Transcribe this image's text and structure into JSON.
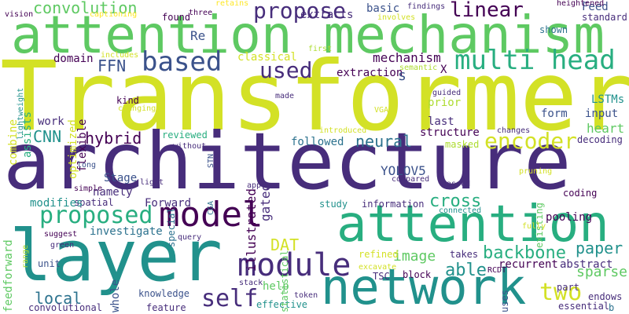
{
  "colors": {
    "background": "#ffffff",
    "palette": [
      "#440154",
      "#472d7b",
      "#3b528b",
      "#2c728e",
      "#21918c",
      "#28ae80",
      "#5ec962",
      "#addc30",
      "#d3e126",
      "#fde725"
    ]
  },
  "words": [
    {
      "text": "Transformer",
      "color": "#d3e126"
    },
    {
      "text": "architecture",
      "color": "#472d7b"
    },
    {
      "text": "attention mechanism",
      "color": "#5ec962"
    },
    {
      "text": "layer",
      "color": "#21918c"
    },
    {
      "text": "network",
      "color": "#21918c"
    },
    {
      "text": "attention",
      "color": "#28ae80"
    },
    {
      "text": "model",
      "color": "#440154"
    },
    {
      "text": "multi head",
      "color": "#28ae80"
    },
    {
      "text": "module",
      "color": "#472d7b"
    },
    {
      "text": "based",
      "color": "#3b528b"
    },
    {
      "text": "encoder",
      "color": "#d3e126"
    },
    {
      "text": "proposed",
      "color": "#28ae80"
    },
    {
      "text": "self",
      "color": "#472d7b"
    },
    {
      "text": "two",
      "color": "#d3e126"
    },
    {
      "text": "backbone",
      "color": "#28ae80"
    },
    {
      "text": "convolution",
      "color": "#5ec962"
    },
    {
      "text": "propose",
      "color": "#472d7b"
    },
    {
      "text": "used",
      "color": "#472d7b"
    },
    {
      "text": "linear",
      "color": "#440154"
    },
    {
      "text": "FFN",
      "color": "#3b528b"
    },
    {
      "text": "CNN",
      "color": "#21918c"
    },
    {
      "text": "hybrid",
      "color": "#440154"
    },
    {
      "text": "neural",
      "color": "#2c728e"
    },
    {
      "text": "cross",
      "color": "#28ae80"
    },
    {
      "text": "able",
      "color": "#21918c"
    },
    {
      "text": "paper",
      "color": "#21918c"
    },
    {
      "text": "sparse",
      "color": "#5ec962"
    },
    {
      "text": "local",
      "color": "#2c728e"
    },
    {
      "text": "image",
      "color": "#5ec962"
    },
    {
      "text": "DAT",
      "color": "#d3e126"
    },
    {
      "text": "mechanism",
      "color": "#440154"
    },
    {
      "text": "classical",
      "color": "#d3e126"
    },
    {
      "text": "YOLOV5",
      "color": "#3b528b"
    },
    {
      "text": "Forward",
      "color": "#472d7b"
    },
    {
      "text": "Feed",
      "color": "#3b528b"
    },
    {
      "text": "extracts",
      "color": "#472d7b"
    },
    {
      "text": "basic",
      "color": "#3b528b"
    },
    {
      "text": "extraction",
      "color": "#440154"
    },
    {
      "text": "s",
      "color": "#3b528b"
    },
    {
      "text": "structure",
      "color": "#440154"
    },
    {
      "text": "followed",
      "color": "#2c728e"
    },
    {
      "text": "refined",
      "color": "#d3e126"
    },
    {
      "text": "recurrent",
      "color": "#440154"
    },
    {
      "text": "abstract",
      "color": "#472d7b"
    },
    {
      "text": "pooling",
      "color": "#440154"
    },
    {
      "text": "Stage",
      "color": "#3b528b"
    },
    {
      "text": "namely",
      "color": "#472d7b"
    },
    {
      "text": "spatial",
      "color": "#472d7b"
    },
    {
      "text": "modifies",
      "color": "#21918c"
    },
    {
      "text": "investigate",
      "color": "#2c728e"
    },
    {
      "text": "study",
      "color": "#21918c"
    },
    {
      "text": "information",
      "color": "#472d7b"
    },
    {
      "text": "coding",
      "color": "#440154"
    },
    {
      "text": "decoding",
      "color": "#472d7b"
    },
    {
      "text": "input",
      "color": "#3b528b"
    },
    {
      "text": "heart",
      "color": "#5ec962"
    },
    {
      "text": "form",
      "color": "#3b528b"
    },
    {
      "text": "LSTMs",
      "color": "#21918c"
    },
    {
      "text": "standard",
      "color": "#472d7b"
    },
    {
      "text": "shown",
      "color": "#2c728e"
    },
    {
      "text": "last",
      "color": "#472d7b"
    },
    {
      "text": "prior",
      "color": "#addc30"
    },
    {
      "text": "masked",
      "color": "#addc30"
    },
    {
      "text": "reviewed",
      "color": "#28ae80"
    },
    {
      "text": "kind",
      "color": "#440154"
    },
    {
      "text": "work",
      "color": "#472d7b"
    },
    {
      "text": "domain",
      "color": "#440154"
    },
    {
      "text": "found",
      "color": "#440154"
    },
    {
      "text": "Re",
      "color": "#3b528b"
    },
    {
      "text": "X",
      "color": "#440154"
    },
    {
      "text": "help",
      "color": "#5ec962"
    },
    {
      "text": "unit",
      "color": "#3b528b"
    },
    {
      "text": "convolutional",
      "color": "#472d7b"
    },
    {
      "text": "effective",
      "color": "#21918c"
    },
    {
      "text": "knowledge",
      "color": "#3b528b"
    },
    {
      "text": "feature",
      "color": "#472d7b"
    },
    {
      "text": "block",
      "color": "#440154"
    },
    {
      "text": "TSC",
      "color": "#472d7b"
    },
    {
      "text": "takes",
      "color": "#472d7b"
    },
    {
      "text": "part",
      "color": "#472d7b"
    },
    {
      "text": "endows",
      "color": "#472d7b"
    },
    {
      "text": "essential",
      "color": "#472d7b"
    },
    {
      "text": "b",
      "color": "#2c728e"
    },
    {
      "text": "existing",
      "color": "#5ec962"
    },
    {
      "text": "special",
      "color": "#2c728e"
    },
    {
      "text": "statistical",
      "color": "#5ec962"
    },
    {
      "text": "illustrated",
      "color": "#440154"
    },
    {
      "text": "gated",
      "color": "#472d7b"
    },
    {
      "text": "optimized",
      "color": "#d3e126"
    },
    {
      "text": "flexible",
      "color": "#440154"
    },
    {
      "text": "assists",
      "color": "#28ae80"
    },
    {
      "text": "combine",
      "color": "#d3e126"
    },
    {
      "text": "feedforward",
      "color": "#5ec962"
    },
    {
      "text": "whole",
      "color": "#3b528b"
    },
    {
      "text": "uses",
      "color": "#3b528b"
    },
    {
      "text": "vision",
      "color": "#440154"
    },
    {
      "text": "captioning",
      "color": "#fde725"
    },
    {
      "text": "three",
      "color": "#440154"
    },
    {
      "text": "retains",
      "color": "#fde725"
    },
    {
      "text": "involves",
      "color": "#d3e126"
    },
    {
      "text": "findings",
      "color": "#472d7b"
    },
    {
      "text": "heightened",
      "color": "#440154"
    },
    {
      "text": "first",
      "color": "#addc30"
    },
    {
      "text": "semantic",
      "color": "#addc30"
    },
    {
      "text": "includes",
      "color": "#d3e126"
    },
    {
      "text": "lightweight",
      "color": "#21918c"
    },
    {
      "text": "made",
      "color": "#472d7b"
    },
    {
      "text": "guided",
      "color": "#472d7b"
    },
    {
      "text": "VGA",
      "color": "#d3e126"
    },
    {
      "text": "changing",
      "color": "#d3e126"
    },
    {
      "text": "introduced",
      "color": "#d3e126"
    },
    {
      "text": "changes",
      "color": "#472d7b"
    },
    {
      "text": "without",
      "color": "#472d7b"
    },
    {
      "text": "STN",
      "color": "#3b528b"
    },
    {
      "text": "long",
      "color": "#3b528b"
    },
    {
      "text": "light",
      "color": "#472d7b"
    },
    {
      "text": "simple",
      "color": "#440154"
    },
    {
      "text": "apply",
      "color": "#472d7b"
    },
    {
      "text": "compared",
      "color": "#472d7b"
    },
    {
      "text": "CGA",
      "color": "#2c728e"
    },
    {
      "text": "passed",
      "color": "#472d7b"
    },
    {
      "text": "connected",
      "color": "#21918c"
    },
    {
      "text": "pruning",
      "color": "#d3e126"
    },
    {
      "text": "query",
      "color": "#472d7b"
    },
    {
      "text": "suggest",
      "color": "#440154"
    },
    {
      "text": "range",
      "color": "#addc30"
    },
    {
      "text": "fully",
      "color": "#d3e126"
    },
    {
      "text": "green",
      "color": "#472d7b"
    },
    {
      "text": "excavate",
      "color": "#d3e126"
    },
    {
      "text": "RCDT",
      "color": "#440154"
    },
    {
      "text": "stack",
      "color": "#472d7b"
    },
    {
      "text": "token",
      "color": "#472d7b"
    }
  ]
}
